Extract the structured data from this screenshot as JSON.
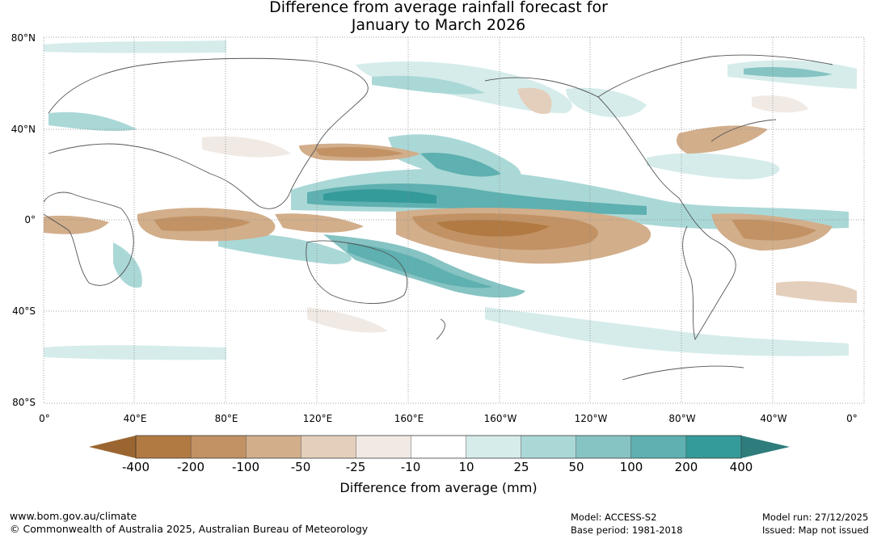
{
  "title": {
    "line1": "Difference from average rainfall forecast for",
    "line2": "January to March 2026"
  },
  "map": {
    "lat_labels": [
      "80°N",
      "40°N",
      "0°",
      "40°S",
      "80°S"
    ],
    "lon_labels": [
      "0°",
      "40°E",
      "80°E",
      "120°E",
      "160°E",
      "160°W",
      "120°W",
      "80°W",
      "40°W",
      "0°"
    ]
  },
  "colorbar": {
    "tick_labels": [
      "-400",
      "-200",
      "-100",
      "-50",
      "-25",
      "-10",
      "10",
      "25",
      "50",
      "100",
      "200",
      "400"
    ],
    "colors": [
      "#9a6530",
      "#b27a43",
      "#c29264",
      "#d2ae8b",
      "#e4cfbc",
      "#f1eae4",
      "#ffffff",
      "#d5eceb",
      "#aad8d7",
      "#86c3c3",
      "#5fb0b0",
      "#359b9a",
      "#2e7d7c"
    ],
    "label": "Difference from average (mm)"
  },
  "footer": {
    "website": "www.bom.gov.au/climate",
    "copyright": "© Commonwealth of Australia 2025, Australian Bureau of Meteorology",
    "model": "Model: ACCESS-S2",
    "base_period": "Base period: 1981-2018",
    "model_run": "Model run: 27/12/2025",
    "issued": "Issued: Map not issued"
  }
}
